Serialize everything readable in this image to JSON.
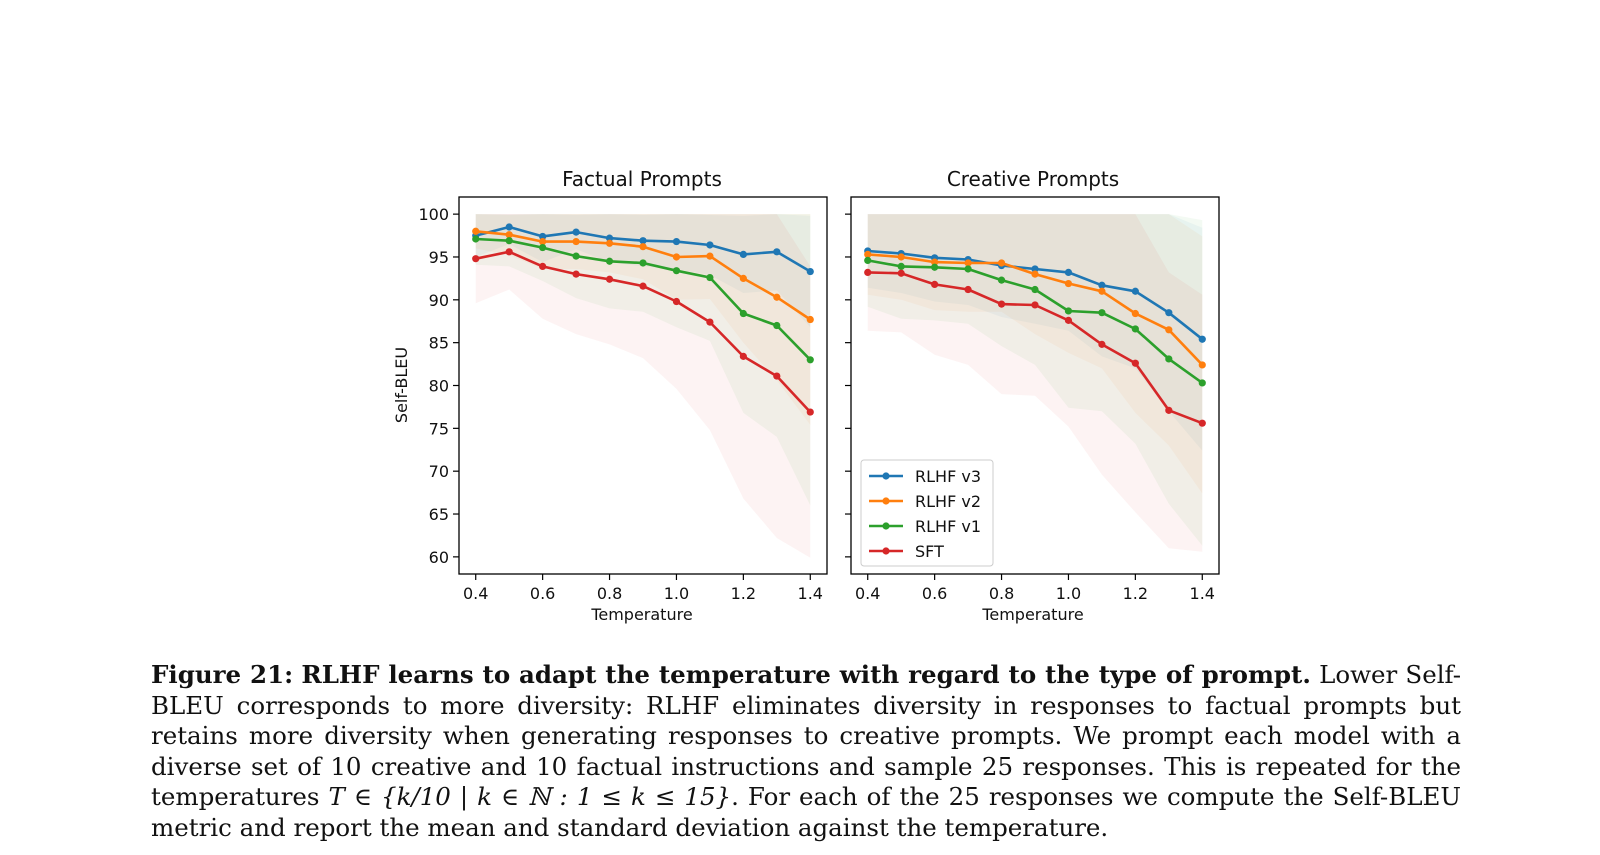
{
  "chart_data": [
    {
      "type": "line",
      "title": "Factual Prompts",
      "xlabel": "Temperature",
      "ylabel": "Self-BLEU",
      "xlim": [
        0.35,
        1.45
      ],
      "ylim": [
        58,
        102
      ],
      "xticks": [
        "0.4",
        "0.6",
        "0.8",
        "1.0",
        "1.2",
        "1.4"
      ],
      "yticks": [
        "60",
        "65",
        "70",
        "75",
        "80",
        "85",
        "90",
        "95",
        "100"
      ],
      "x": [
        0.4,
        0.5,
        0.6,
        0.7,
        0.8,
        0.9,
        1.0,
        1.1,
        1.2,
        1.3,
        1.4
      ],
      "shaded_std_bands": true,
      "series": [
        {
          "name": "RLHF v3",
          "color": "#1f77b4",
          "values": [
            97.5,
            98.5,
            97.4,
            97.9,
            97.2,
            96.9,
            96.8,
            96.4,
            95.3,
            95.6,
            93.3
          ],
          "std": [
            2.5,
            2.0,
            3.0,
            2.0,
            2.8,
            3.0,
            3.2,
            3.5,
            4.5,
            4.5,
            6.5
          ]
        },
        {
          "name": "RLHF v2",
          "color": "#ff7f0e",
          "values": [
            98.0,
            97.6,
            96.8,
            96.8,
            96.6,
            96.2,
            95.0,
            95.1,
            92.5,
            90.3,
            87.7
          ],
          "std": [
            2.0,
            2.4,
            3.2,
            3.2,
            3.4,
            3.8,
            5.0,
            5.0,
            7.5,
            9.7,
            12.3
          ]
        },
        {
          "name": "RLHF v1",
          "color": "#2ca02c",
          "values": [
            97.1,
            96.9,
            96.1,
            95.1,
            94.5,
            94.3,
            93.4,
            92.6,
            88.4,
            87.0,
            83.0
          ],
          "std": [
            3.0,
            3.0,
            3.9,
            4.9,
            5.5,
            5.7,
            6.6,
            7.4,
            11.6,
            13.0,
            17.0
          ]
        },
        {
          "name": "SFT",
          "color": "#d62728",
          "values": [
            94.8,
            95.6,
            93.9,
            93.0,
            92.4,
            91.6,
            89.8,
            87.4,
            83.4,
            81.1,
            76.9
          ],
          "std": [
            5.2,
            4.4,
            6.1,
            7.0,
            7.6,
            8.4,
            10.2,
            12.6,
            16.6,
            18.9,
            17.0
          ]
        }
      ]
    },
    {
      "type": "line",
      "title": "Creative Prompts",
      "xlabel": "Temperature",
      "ylabel": "",
      "xlim": [
        0.35,
        1.45
      ],
      "ylim": [
        58,
        102
      ],
      "xticks": [
        "0.4",
        "0.6",
        "0.8",
        "1.0",
        "1.2",
        "1.4"
      ],
      "x": [
        0.4,
        0.5,
        0.6,
        0.7,
        0.8,
        0.9,
        1.0,
        1.1,
        1.2,
        1.3,
        1.4
      ],
      "shaded_std_bands": true,
      "legend_position": "lower-left",
      "series": [
        {
          "name": "RLHF v3",
          "color": "#1f77b4",
          "values": [
            95.7,
            95.4,
            94.9,
            94.7,
            94.0,
            93.6,
            93.2,
            91.7,
            91.0,
            88.5,
            85.4
          ],
          "std": [
            4.3,
            4.6,
            5.1,
            5.3,
            6.0,
            6.4,
            6.8,
            8.3,
            9.0,
            11.5,
            13.0
          ]
        },
        {
          "name": "RLHF v2",
          "color": "#ff7f0e",
          "values": [
            95.3,
            95.0,
            94.4,
            94.3,
            94.3,
            93.0,
            91.9,
            91.0,
            88.4,
            86.5,
            82.4
          ],
          "std": [
            4.7,
            5.0,
            5.6,
            5.7,
            5.7,
            7.0,
            8.1,
            9.0,
            11.6,
            13.5,
            15.0
          ]
        },
        {
          "name": "RLHF v1",
          "color": "#2ca02c",
          "values": [
            94.6,
            93.9,
            93.8,
            93.6,
            92.3,
            91.2,
            88.7,
            88.5,
            86.6,
            83.1,
            80.3
          ],
          "std": [
            5.4,
            6.1,
            6.2,
            6.4,
            7.7,
            8.8,
            11.3,
            11.5,
            13.4,
            16.9,
            19.0
          ]
        },
        {
          "name": "SFT",
          "color": "#d62728",
          "values": [
            93.2,
            93.1,
            91.8,
            91.2,
            89.5,
            89.4,
            87.6,
            84.8,
            82.6,
            77.1,
            75.6
          ],
          "std": [
            6.8,
            6.9,
            8.2,
            8.8,
            10.5,
            10.6,
            12.4,
            15.2,
            17.4,
            16.1,
            15.0
          ]
        }
      ]
    }
  ],
  "caption": {
    "label": "Figure 21:",
    "title": "RLHF learns to adapt the temperature with regard to the type of prompt.",
    "text1": "Lower Self-BLEU corresponds to more diversity: RLHF eliminates diversity in responses to factual prompts but retains more diversity when generating responses to creative prompts.  We prompt each model with a diverse set of 10 creative and 10 factual instructions and sample 25 responses.  This is repeated for the temperatures",
    "math": "T ∈ {k/10 | k ∈ ℕ : 1 ≤ k ≤ 15}",
    "text2": ". For each of the 25 responses we compute the Self-BLEU metric and report the mean and standard deviation against the temperature."
  }
}
